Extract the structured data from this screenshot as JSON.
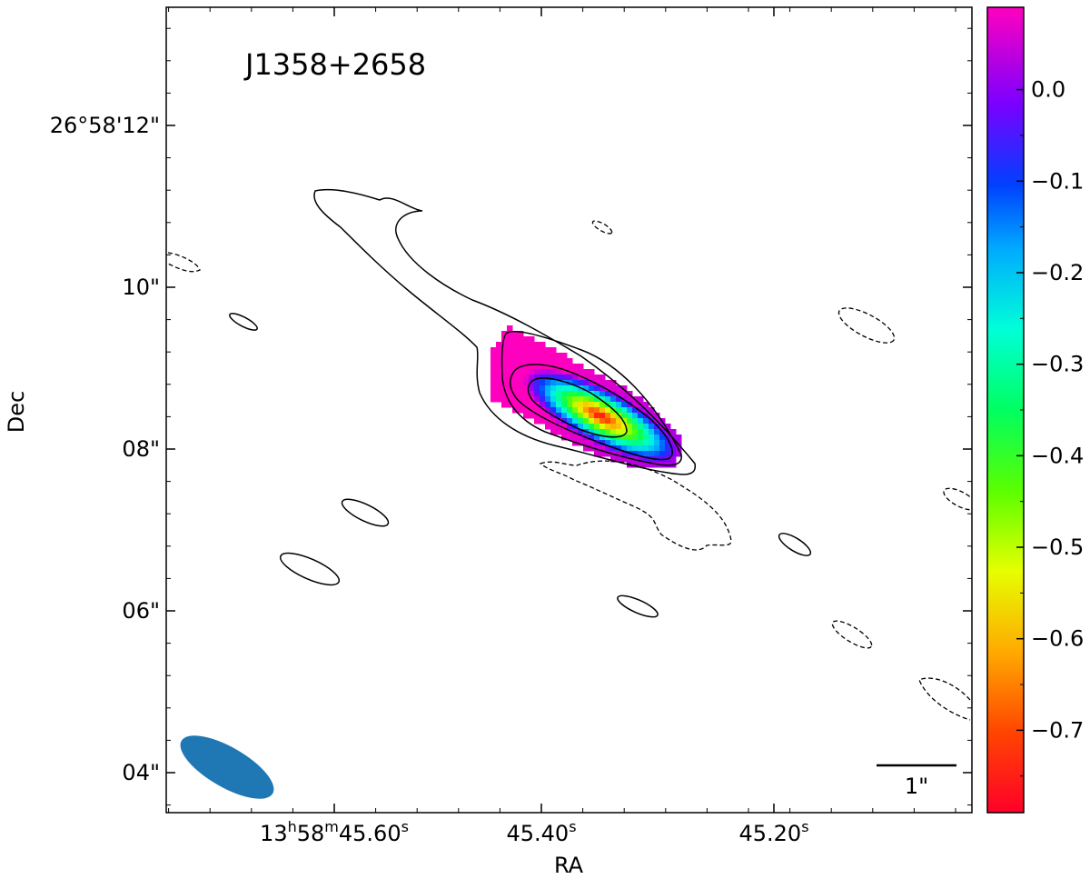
{
  "chart_data": {
    "type": "heatmap",
    "title": "J1358+2658",
    "xlabel": "RA",
    "ylabel": "Dec",
    "x_ticks": [
      {
        "label": "13h58m45.60s",
        "h": "13",
        "m": "58",
        "s": "45.60",
        "value": 45.6
      },
      {
        "label": "45.40s",
        "s": "45.40",
        "value": 45.4
      },
      {
        "label": "45.20s",
        "s": "45.20",
        "value": 45.2
      }
    ],
    "y_ticks": [
      {
        "label": "26°58'12\"",
        "value": 12
      },
      {
        "label": "10\"",
        "value": 10
      },
      {
        "label": "08\"",
        "value": 8
      },
      {
        "label": "06\"",
        "value": 6
      },
      {
        "label": "04\"",
        "value": 4
      }
    ],
    "colorbar": {
      "colormap": "gist_rainbow",
      "range": [
        -0.79,
        0.09
      ],
      "ticks": [
        "0.0",
        "−0.1",
        "−0.2",
        "−0.3",
        "−0.4",
        "−0.5",
        "−0.6",
        "−0.7"
      ],
      "tick_values": [
        0.0,
        -0.1,
        -0.2,
        -0.3,
        -0.4,
        -0.5,
        -0.6,
        -0.7
      ]
    },
    "scale_bar": {
      "label": "1\""
    },
    "beam": {
      "color": "#1f77b4"
    }
  }
}
